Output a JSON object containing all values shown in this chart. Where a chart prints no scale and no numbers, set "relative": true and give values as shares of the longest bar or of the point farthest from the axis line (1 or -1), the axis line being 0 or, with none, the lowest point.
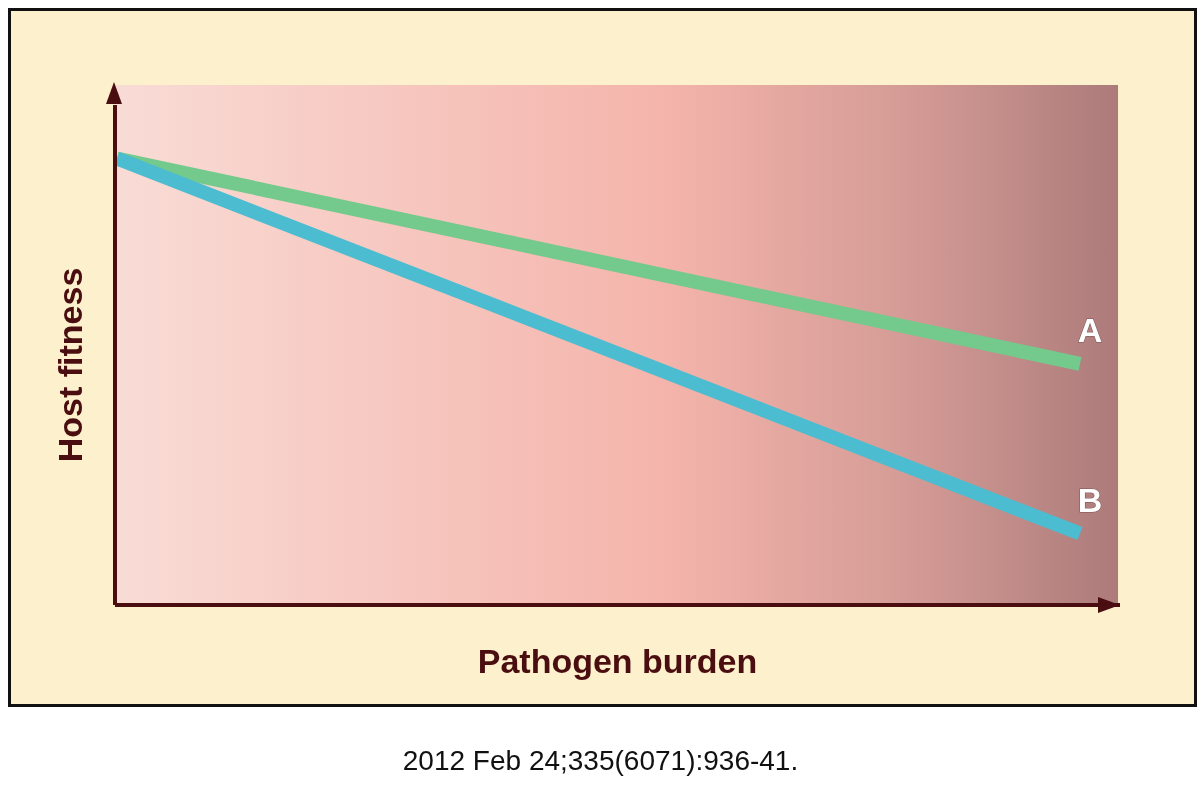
{
  "chart_data": {
    "type": "line",
    "relative": true,
    "xlabel": "Pathogen burden",
    "ylabel": "Host fitness",
    "categories": [
      null,
      null
    ],
    "series": [
      {
        "name": "A",
        "color": "#74c98c",
        "values": [
          1,
          0.54
        ]
      },
      {
        "name": "B",
        "color": "#4cbdd0",
        "values": [
          1,
          0.16
        ]
      }
    ],
    "marker": "none",
    "line_style": "solid",
    "annotations": [
      "2012 Feb 24;335(6071):936-41."
    ]
  }
}
